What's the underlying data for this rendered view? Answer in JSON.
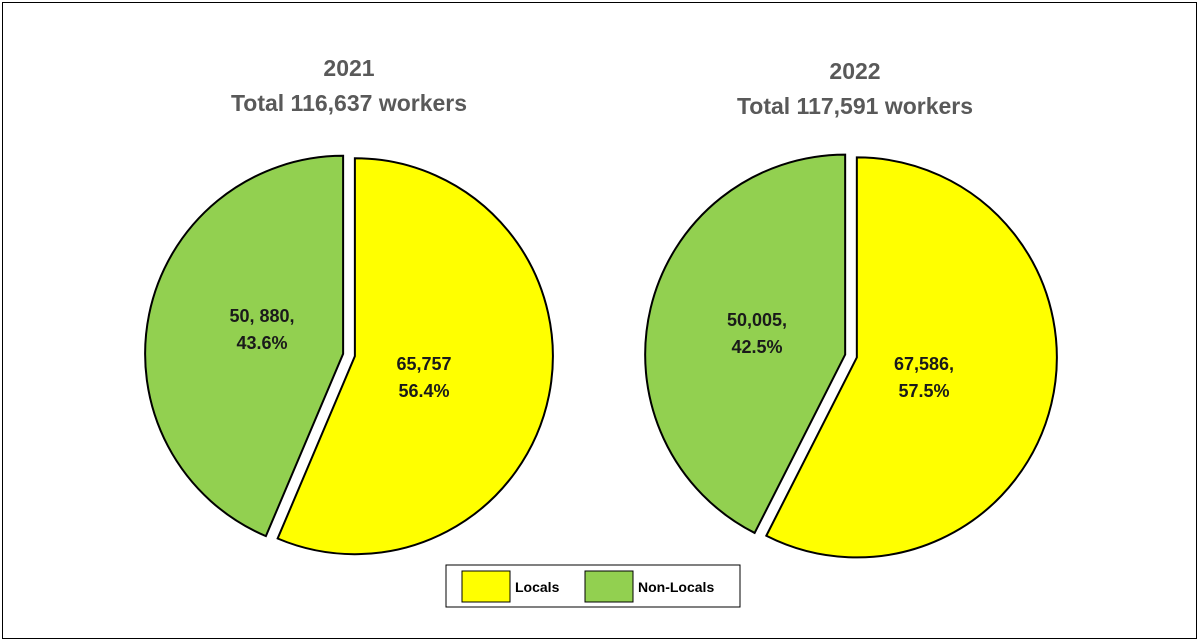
{
  "chart_data": [
    {
      "type": "pie",
      "title": "2021",
      "subtitle": "Total 116,637 workers",
      "slices": [
        {
          "name": "Locals",
          "value": 65757,
          "percent": 56.4,
          "color": "#ffff00",
          "label_lines": [
            "65,757",
            "56.4%"
          ]
        },
        {
          "name": "Non-Locals",
          "value": 50880,
          "percent": 43.6,
          "color": "#92d050",
          "label_lines": [
            "50, 880,",
            "43.6%"
          ]
        }
      ]
    },
    {
      "type": "pie",
      "title": "2022",
      "subtitle": "Total 117,591 workers",
      "slices": [
        {
          "name": "Locals",
          "value": 67586,
          "percent": 57.5,
          "color": "#ffff00",
          "label_lines": [
            "67,586,",
            "57.5%"
          ]
        },
        {
          "name": "Non-Locals",
          "value": 50005,
          "percent": 42.5,
          "color": "#92d050",
          "label_lines": [
            "50,005,",
            "42.5%"
          ]
        }
      ]
    }
  ],
  "legend": {
    "placement": "bottom-center",
    "items": [
      {
        "label": "Locals",
        "color": "#ffff00"
      },
      {
        "label": "Non-Locals",
        "color": "#92d050"
      }
    ]
  }
}
